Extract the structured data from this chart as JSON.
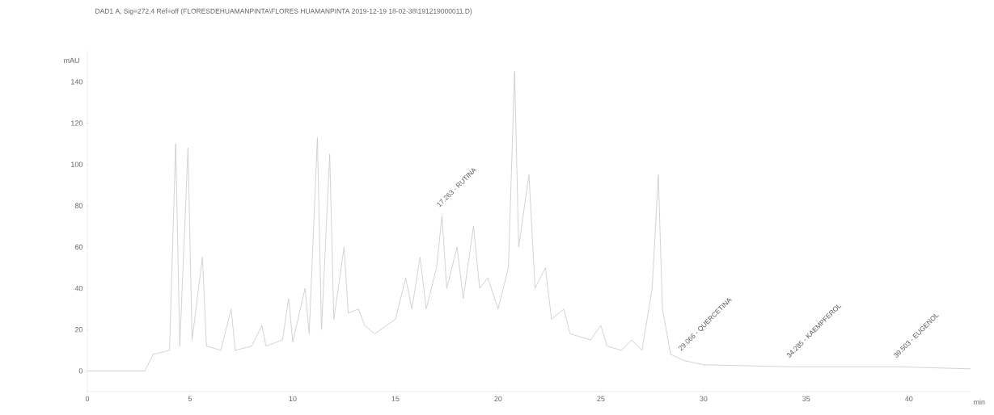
{
  "chart_data": {
    "type": "line",
    "title": "DAD1 A, Sig=272,4 Ref=off (FLORESDEHUAMANPINTA\\FLORES HUAMANPINTA 2019-12-19 18-02-38\\191219000011.D)",
    "xlabel": "min",
    "ylabel": "mAU",
    "xlim": [
      0,
      43
    ],
    "ylim": [
      -10,
      155
    ],
    "xticks": [
      0,
      5,
      10,
      15,
      20,
      25,
      30,
      35,
      40
    ],
    "yticks": [
      0,
      20,
      40,
      60,
      80,
      100,
      120,
      140
    ],
    "x": [
      0,
      2.8,
      3.2,
      4.0,
      4.3,
      4.5,
      4.9,
      5.1,
      5.6,
      5.8,
      6.5,
      7.0,
      7.2,
      8.0,
      8.5,
      8.7,
      9.5,
      9.8,
      10.0,
      10.6,
      10.8,
      11.2,
      11.4,
      11.8,
      12.0,
      12.5,
      12.7,
      13.2,
      13.5,
      14.0,
      15.0,
      15.5,
      15.8,
      16.2,
      16.5,
      17.0,
      17.263,
      17.5,
      18.0,
      18.3,
      18.8,
      19.1,
      19.5,
      20.0,
      20.5,
      20.8,
      21.0,
      21.5,
      21.8,
      22.3,
      22.6,
      23.2,
      23.5,
      24.5,
      25.0,
      25.3,
      26.0,
      26.5,
      27.0,
      27.5,
      27.8,
      28.0,
      28.4,
      29.066,
      30,
      34.295,
      39.503,
      43
    ],
    "series": [
      {
        "color": "#c8c8c8",
        "values": [
          0,
          0,
          8,
          10,
          110,
          12,
          108,
          15,
          55,
          12,
          10,
          30,
          10,
          12,
          22,
          12,
          15,
          35,
          14,
          40,
          18,
          113,
          20,
          105,
          25,
          60,
          28,
          30,
          22,
          18,
          25,
          45,
          30,
          55,
          30,
          50,
          75,
          40,
          60,
          35,
          70,
          40,
          45,
          30,
          50,
          145,
          60,
          95,
          40,
          50,
          25,
          30,
          18,
          15,
          22,
          12,
          10,
          15,
          10,
          40,
          95,
          30,
          8,
          5,
          3,
          2,
          2,
          1
        ]
      }
    ],
    "annotations": [
      {
        "text": "17.263 - RUTINA",
        "x": 17.263,
        "y": 75
      },
      {
        "text": "29.066 - QUERCETINA",
        "x": 29.066,
        "y": 5
      },
      {
        "text": "34.295 - KAEMPFEROL",
        "x": 34.295,
        "y": 2
      },
      {
        "text": "39.503 - EUGENOL",
        "x": 39.503,
        "y": 2
      }
    ],
    "grid": false,
    "marker": "none",
    "line_style": "solid"
  }
}
